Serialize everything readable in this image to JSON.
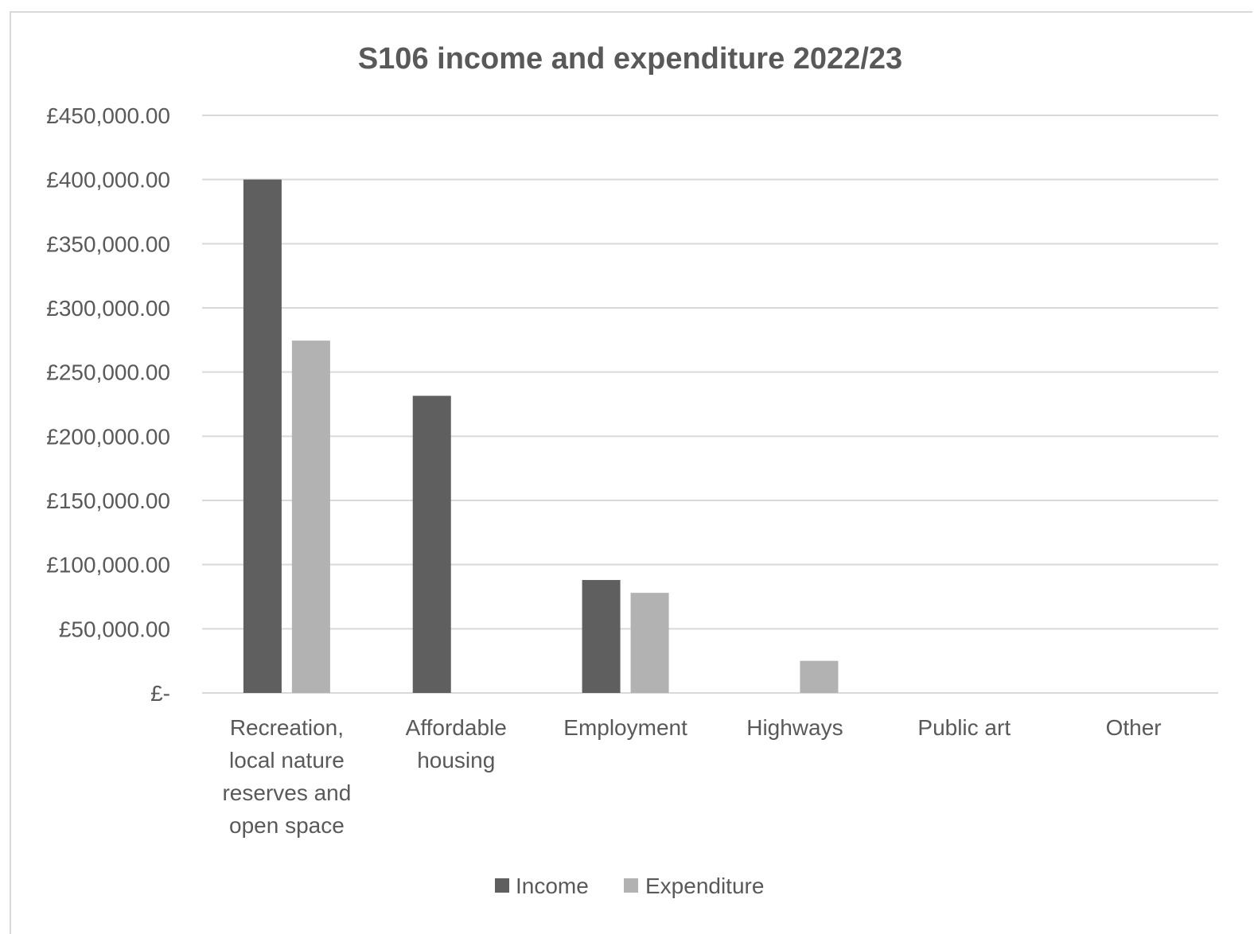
{
  "chart_data": {
    "type": "bar",
    "title": "S106 income and expenditure 2022/23",
    "xlabel": "",
    "ylabel": "",
    "categories": [
      [
        "Recreation,",
        "local nature",
        "reserves and",
        "open space"
      ],
      [
        "Affordable",
        "housing"
      ],
      [
        "Employment"
      ],
      [
        "Highways"
      ],
      [
        "Public art"
      ],
      [
        "Other"
      ]
    ],
    "series": [
      {
        "name": "Income",
        "color": "#5f5f5f",
        "values": [
          400000,
          231500,
          88000,
          0,
          0,
          0
        ]
      },
      {
        "name": "Expenditure",
        "color": "#b2b2b2",
        "values": [
          274500,
          0,
          78000,
          25000,
          0,
          0
        ]
      }
    ],
    "ylim": [
      0,
      450000
    ],
    "yticks": [
      {
        "value": 0,
        "label": "£-"
      },
      {
        "value": 50000,
        "label": "£50,000.00"
      },
      {
        "value": 100000,
        "label": "£100,000.00"
      },
      {
        "value": 150000,
        "label": "£150,000.00"
      },
      {
        "value": 200000,
        "label": "£200,000.00"
      },
      {
        "value": 250000,
        "label": "£250,000.00"
      },
      {
        "value": 300000,
        "label": "£300,000.00"
      },
      {
        "value": 350000,
        "label": "£350,000.00"
      },
      {
        "value": 400000,
        "label": "£400,000.00"
      },
      {
        "value": 450000,
        "label": "£450,000.00"
      }
    ],
    "grid": true,
    "grid_color": "#d9d9d9",
    "legend_position": "bottom"
  }
}
